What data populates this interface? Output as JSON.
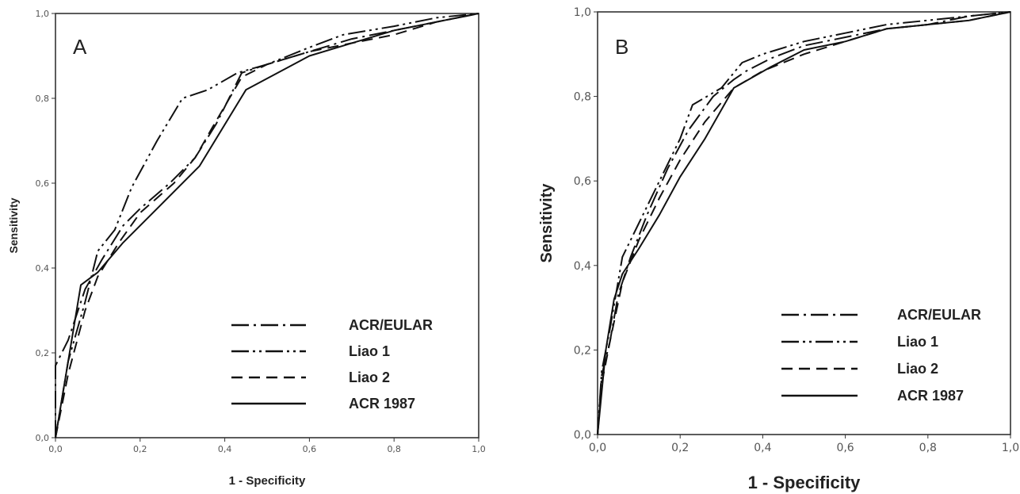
{
  "chart_data": [
    {
      "panel_label": "A",
      "type": "line",
      "xlabel": "1 - Specificity",
      "ylabel": "Sensitivity",
      "xlim": [
        0,
        1
      ],
      "ylim": [
        0,
        1
      ],
      "xticks": [
        "0,0",
        "0,2",
        "0,4",
        "0,6",
        "0,8",
        "1,0"
      ],
      "yticks": [
        "0,0",
        "0,2",
        "0,4",
        "0,6",
        "0,8",
        "1,0"
      ],
      "grid": false,
      "legend_position": "bottom-right",
      "series": [
        {
          "name": "ACR/EULAR",
          "style": "dash-dot",
          "x": [
            0,
            0,
            0.03,
            0.07,
            0.11,
            0.16,
            0.2,
            0.27,
            0.33,
            0.38,
            0.44,
            0.5,
            0.6,
            0.7,
            0.8,
            0.9,
            1
          ],
          "y": [
            0,
            0.17,
            0.23,
            0.35,
            0.42,
            0.5,
            0.54,
            0.6,
            0.66,
            0.74,
            0.86,
            0.88,
            0.91,
            0.94,
            0.96,
            0.98,
            1
          ]
        },
        {
          "name": "Liao 1",
          "style": "dash-dot-dot",
          "x": [
            0,
            0.03,
            0.07,
            0.1,
            0.14,
            0.18,
            0.24,
            0.3,
            0.36,
            0.43,
            0.5,
            0.6,
            0.68,
            0.8,
            0.9,
            1
          ],
          "y": [
            0,
            0.18,
            0.32,
            0.44,
            0.49,
            0.59,
            0.7,
            0.8,
            0.82,
            0.86,
            0.88,
            0.92,
            0.95,
            0.97,
            0.99,
            1
          ]
        },
        {
          "name": "Liao 2",
          "style": "dashed",
          "x": [
            0,
            0.03,
            0.07,
            0.1,
            0.15,
            0.2,
            0.28,
            0.33,
            0.37,
            0.44,
            0.5,
            0.6,
            0.7,
            0.8,
            0.9,
            1
          ],
          "y": [
            0,
            0.15,
            0.3,
            0.38,
            0.46,
            0.53,
            0.6,
            0.66,
            0.73,
            0.85,
            0.88,
            0.91,
            0.93,
            0.95,
            0.98,
            1
          ]
        },
        {
          "name": "ACR 1987",
          "style": "solid",
          "x": [
            0,
            0.06,
            0.1,
            0.16,
            0.25,
            0.34,
            0.45,
            0.6,
            0.7,
            0.8,
            0.9,
            1
          ],
          "y": [
            0,
            0.36,
            0.39,
            0.46,
            0.55,
            0.64,
            0.82,
            0.9,
            0.93,
            0.96,
            0.98,
            1
          ]
        }
      ]
    },
    {
      "panel_label": "B",
      "type": "line",
      "xlabel": "1 - Specificity",
      "ylabel": "Sensitivity",
      "xlim": [
        0,
        1
      ],
      "ylim": [
        0,
        1
      ],
      "xticks": [
        "0,0",
        "0,2",
        "0,4",
        "0,6",
        "0,8",
        "1,0"
      ],
      "yticks": [
        "0,0",
        "0,2",
        "0,4",
        "0,6",
        "0,8",
        "1,0"
      ],
      "grid": false,
      "legend_position": "bottom-right",
      "series": [
        {
          "name": "ACR/EULAR",
          "style": "dash-dot",
          "x": [
            0,
            0.01,
            0.03,
            0.05,
            0.08,
            0.12,
            0.17,
            0.22,
            0.28,
            0.33,
            0.36,
            0.42,
            0.5,
            0.6,
            0.7,
            0.8,
            0.9,
            1
          ],
          "y": [
            0,
            0.14,
            0.22,
            0.33,
            0.42,
            0.52,
            0.63,
            0.72,
            0.8,
            0.84,
            0.86,
            0.89,
            0.92,
            0.94,
            0.96,
            0.97,
            0.99,
            1
          ]
        },
        {
          "name": "Liao 1",
          "style": "dash-dot-dot",
          "x": [
            0,
            0.01,
            0.03,
            0.06,
            0.1,
            0.15,
            0.2,
            0.23,
            0.3,
            0.35,
            0.4,
            0.5,
            0.6,
            0.7,
            0.8,
            0.9,
            1
          ],
          "y": [
            0,
            0.15,
            0.25,
            0.42,
            0.5,
            0.6,
            0.7,
            0.78,
            0.82,
            0.88,
            0.9,
            0.93,
            0.95,
            0.97,
            0.98,
            0.99,
            1
          ]
        },
        {
          "name": "Liao 2",
          "style": "dashed",
          "x": [
            0,
            0.01,
            0.03,
            0.06,
            0.1,
            0.15,
            0.2,
            0.26,
            0.33,
            0.4,
            0.5,
            0.6,
            0.7,
            0.8,
            0.9,
            1
          ],
          "y": [
            0,
            0.12,
            0.22,
            0.36,
            0.46,
            0.56,
            0.65,
            0.74,
            0.82,
            0.86,
            0.9,
            0.93,
            0.96,
            0.97,
            0.98,
            1
          ]
        },
        {
          "name": "ACR 1987",
          "style": "solid",
          "x": [
            0,
            0.01,
            0.02,
            0.04,
            0.06,
            0.1,
            0.15,
            0.2,
            0.26,
            0.33,
            0.42,
            0.5,
            0.6,
            0.7,
            0.8,
            0.9,
            1
          ],
          "y": [
            0,
            0.1,
            0.2,
            0.32,
            0.38,
            0.44,
            0.52,
            0.61,
            0.7,
            0.82,
            0.87,
            0.91,
            0.93,
            0.96,
            0.97,
            0.98,
            1
          ]
        }
      ]
    }
  ]
}
